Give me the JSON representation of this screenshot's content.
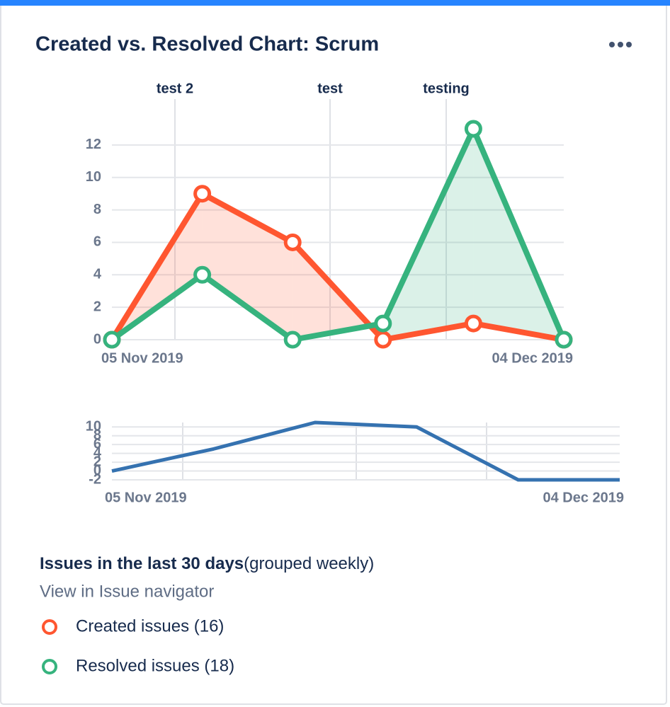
{
  "header": {
    "title": "Created vs. Resolved Chart: Scrum"
  },
  "chart_data": [
    {
      "type": "line",
      "annotations": [
        "test 2",
        "test",
        "testing"
      ],
      "categories": [
        "05 Nov 2019",
        null,
        null,
        null,
        null,
        "04 Dec 2019"
      ],
      "series": [
        {
          "name": "Created issues (16)",
          "color": "#ff5630",
          "values": [
            0,
            9,
            6,
            0,
            1,
            0
          ]
        },
        {
          "name": "Resolved issues (18)",
          "color": "#36b37e",
          "values": [
            0,
            4,
            0,
            1,
            13,
            0
          ]
        }
      ],
      "ylim": [
        0,
        13
      ],
      "yticks": [
        0,
        2,
        4,
        6,
        8,
        10,
        12
      ],
      "grid": true
    },
    {
      "type": "line",
      "categories": [
        "05 Nov 2019",
        null,
        null,
        null,
        null,
        "04 Dec 2019"
      ],
      "series": [
        {
          "color": "#3572b0",
          "values": [
            0,
            5,
            11,
            10,
            -2,
            -2
          ]
        }
      ],
      "ylim": [
        -2,
        11
      ],
      "yticks": [
        -2,
        0,
        2,
        4,
        6,
        8,
        10
      ],
      "grid": true
    }
  ],
  "footer": {
    "heading": "Issues in the last 30 days",
    "heading_note": "(grouped weekly)",
    "link": "View in Issue navigator"
  }
}
